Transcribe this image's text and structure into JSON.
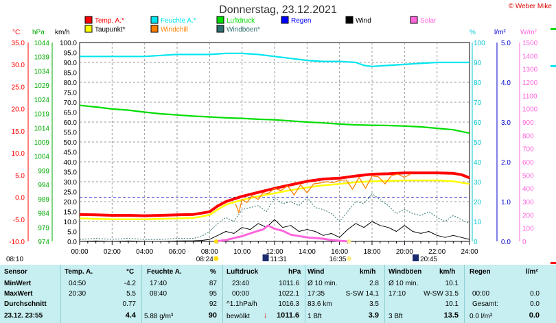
{
  "title": "Donnerstag, 23.12.2021",
  "copyright": "© Weber Mike",
  "colors": {
    "temp": "#ff0000",
    "dewpoint": "#ffff00",
    "humidity": "#00e5ee",
    "windchill": "#ff8000",
    "pressure": "#00dd00",
    "windgust": "#2f6f6f",
    "rain": "#0000ff",
    "wind": "#000000",
    "solar": "#ff66dd",
    "stats_bg": "#c7eef0"
  },
  "legend": [
    {
      "label": "Temp. A.*",
      "color": "#ff0000",
      "row": 0,
      "col": 0
    },
    {
      "label": "Feuchte A.*",
      "color": "#00e5ee",
      "row": 0,
      "col": 1
    },
    {
      "label": "Luftdruck",
      "color": "#00dd00",
      "row": 0,
      "col": 2
    },
    {
      "label": "Regen",
      "color": "#0000ff",
      "row": 0,
      "col": 3
    },
    {
      "label": "Wind",
      "color": "#000000",
      "row": 0,
      "col": 4
    },
    {
      "label": "Solar",
      "color": "#ff66dd",
      "row": 0,
      "col": 5
    },
    {
      "label": "Taupunkt*",
      "color": "#ffff00",
      "row": 1,
      "col": 0
    },
    {
      "label": "Windchill",
      "color": "#ff8000",
      "row": 1,
      "col": 1
    },
    {
      "label": "Windböen*",
      "color": "#2f6f6f",
      "row": 1,
      "col": 2
    }
  ],
  "axis_units": {
    "temp": "°C",
    "pressure": "hPa",
    "wind": "km/h",
    "humidity": "%",
    "rain": "l/m²",
    "solar": "W/m²"
  },
  "chart_data": {
    "type": "line",
    "x_labels": [
      "00:00",
      "02:00",
      "04:00",
      "06:00",
      "08:00",
      "10:00",
      "12:00",
      "14:00",
      "16:00",
      "18:00",
      "20:00",
      "22:00",
      "24:00"
    ],
    "axes": {
      "temp_c": {
        "range": [
          -10,
          35
        ],
        "ticks": [
          "35.0",
          "30.0",
          "25.0",
          "20.0",
          "15.0",
          "10.0",
          "5.0",
          "0.0",
          "-5.0",
          "-10.0"
        ]
      },
      "pressure_hpa": {
        "range": [
          974,
          1044
        ],
        "ticks": [
          "1044",
          "1039",
          "1034",
          "1029",
          "1024",
          "1019",
          "1014",
          "1009",
          "1004",
          "999",
          "994",
          "989",
          "984",
          "979",
          "974"
        ]
      },
      "wind_kmh": {
        "range": [
          0,
          100
        ],
        "ticks": [
          "100.0",
          "95.0",
          "90.0",
          "85.0",
          "80.0",
          "75.0",
          "70.0",
          "65.0",
          "60.0",
          "55.0",
          "50.0",
          "45.0",
          "40.0",
          "35.0",
          "30.0",
          "25.0",
          "20.0",
          "15.0",
          "10.0",
          "5.0",
          "0.0"
        ]
      },
      "humidity_pct": {
        "range": [
          0,
          100
        ],
        "ticks": [
          "100",
          "90",
          "80",
          "70",
          "60",
          "50",
          "40",
          "30",
          "20",
          "10",
          "0"
        ]
      },
      "rain_lm2": {
        "range": [
          0,
          5
        ],
        "ticks": [
          "5.0",
          "4.0",
          "3.0",
          "2.0",
          "1.0",
          "0.0"
        ]
      },
      "solar_wm2": {
        "range": [
          0,
          1500
        ],
        "ticks": [
          "1500",
          "1400",
          "1300",
          "1200",
          "1100",
          "1000",
          "900",
          "800",
          "700",
          "600",
          "500",
          "400",
          "300",
          "200",
          "100",
          "0"
        ]
      }
    },
    "series": [
      {
        "name": "Feuchte A.*",
        "axis": "humidity_pct",
        "color": "#00e5ee",
        "x": [
          0,
          1,
          2,
          3,
          4,
          5,
          6,
          7,
          8,
          9,
          10,
          11,
          12,
          13,
          14,
          15,
          16,
          17,
          17.5,
          18,
          19,
          20,
          21,
          22,
          23,
          24
        ],
        "y": [
          93,
          93,
          93,
          93,
          93,
          93.5,
          94,
          94,
          94,
          94.5,
          94.5,
          94,
          93,
          92,
          91,
          90.5,
          90.5,
          90,
          88.5,
          88,
          88.5,
          89,
          89.5,
          90,
          90,
          90
        ]
      },
      {
        "name": "Luftdruck",
        "axis": "pressure_hpa",
        "color": "#00dd00",
        "x": [
          0,
          1,
          2,
          3,
          4,
          5,
          6,
          7,
          8,
          9,
          10,
          11,
          12,
          13,
          14,
          15,
          16,
          17,
          18,
          19,
          20,
          21,
          22,
          23,
          24
        ],
        "y": [
          1021.9,
          1021.3,
          1020.6,
          1020.2,
          1019.5,
          1018.9,
          1018.5,
          1018.1,
          1017.8,
          1017.5,
          1017.3,
          1017.0,
          1016.8,
          1016.4,
          1016.0,
          1015.7,
          1015.3,
          1015.0,
          1014.9,
          1014.8,
          1014.6,
          1014.3,
          1013.8,
          1013.3,
          1012.1
        ]
      },
      {
        "name": "Temp. A.*",
        "axis": "temp_c",
        "color": "#ff0000",
        "x": [
          0,
          1,
          2,
          3,
          4,
          5,
          6,
          7,
          7.5,
          8,
          8.5,
          9,
          10,
          11,
          12,
          13,
          14,
          15,
          16,
          17,
          18,
          19,
          20,
          21,
          22,
          23,
          23.5,
          24
        ],
        "y": [
          -3.9,
          -4.0,
          -4.1,
          -4.1,
          -4.2,
          -4.1,
          -4.0,
          -3.9,
          -3.6,
          -3.3,
          -2.0,
          -1.0,
          0.2,
          1.1,
          2.0,
          2.8,
          3.6,
          4.1,
          4.3,
          4.8,
          5.2,
          5.3,
          5.5,
          5.5,
          5.5,
          5.4,
          5.1,
          4.4
        ]
      },
      {
        "name": "Taupunkt*",
        "axis": "temp_c",
        "color": "#ffff00",
        "x": [
          0,
          1,
          2,
          3,
          4,
          5,
          6,
          7,
          7.5,
          8,
          8.5,
          9,
          10,
          11,
          12,
          13,
          14,
          15,
          16,
          17,
          18,
          19,
          20,
          21,
          22,
          23,
          24
        ],
        "y": [
          -4.8,
          -4.9,
          -5.0,
          -5.0,
          -5.0,
          -4.9,
          -4.8,
          -4.7,
          -4.4,
          -4.0,
          -2.8,
          -1.7,
          -0.6,
          0.2,
          0.9,
          1.6,
          2.2,
          2.7,
          3.0,
          3.4,
          3.6,
          3.7,
          3.8,
          3.8,
          3.8,
          3.6,
          3.0
        ]
      },
      {
        "name": "Windchill",
        "axis": "temp_c",
        "color": "#ff8000",
        "x": [
          9.6,
          9.8,
          10,
          10.3,
          10.6,
          11,
          11.3,
          11.6,
          12,
          12.4,
          12.8,
          13.2,
          13.6,
          14,
          14.4,
          14.8,
          15.2,
          15.6,
          16,
          16.4,
          16.8,
          17.2,
          17.6,
          18,
          18.4,
          18.8,
          19.2,
          19.6,
          20,
          20.4
        ],
        "y": [
          -1.5,
          -3.5,
          -0.5,
          -1.2,
          0.3,
          -0.5,
          1.0,
          0.8,
          2.0,
          1.5,
          2.6,
          0.5,
          2.8,
          1.0,
          3.0,
          3.2,
          3.5,
          3.3,
          3.8,
          3.9,
          1.8,
          4.5,
          2.0,
          4.8,
          4.6,
          3.0,
          4.9,
          5.2,
          4.5,
          5.3
        ]
      },
      {
        "name": "Windböen*",
        "axis": "wind_kmh",
        "color": "#2f6f6f",
        "x": [
          0,
          1,
          2,
          3,
          4,
          5,
          6,
          7,
          7.5,
          8,
          8.5,
          9,
          9.5,
          10,
          10.5,
          11,
          11.5,
          12,
          12.5,
          13,
          13.5,
          14,
          14.5,
          15,
          15.5,
          16,
          16.5,
          17,
          17.5,
          18,
          18.5,
          19,
          19.5,
          20,
          20.5,
          21,
          21.5,
          22,
          22.5,
          23,
          23.5,
          24
        ],
        "y": [
          1,
          1.5,
          1,
          1.5,
          1,
          1,
          1.5,
          1.5,
          2.5,
          5,
          9,
          12,
          10,
          16,
          17,
          18,
          15,
          22,
          19,
          20,
          18,
          22,
          17,
          16,
          14,
          10,
          15,
          20,
          19,
          24,
          21,
          18,
          14,
          16,
          14,
          13,
          15,
          12,
          10,
          13,
          11,
          9
        ]
      },
      {
        "name": "Wind",
        "axis": "wind_kmh",
        "color": "#000000",
        "x": [
          0,
          1,
          2,
          3,
          4,
          5,
          6,
          7,
          7.5,
          8,
          8.5,
          9,
          9.5,
          10,
          10.5,
          11,
          11.5,
          12,
          12.5,
          13,
          13.5,
          14,
          14.5,
          15,
          15.5,
          16,
          16.5,
          17,
          17.5,
          18,
          18.5,
          19,
          19.5,
          20,
          20.5,
          21,
          21.5,
          22,
          22.5,
          23,
          23.5,
          24
        ],
        "y": [
          0,
          0.2,
          0,
          0.2,
          0,
          0,
          0.2,
          0.3,
          0.5,
          1,
          3,
          5,
          4,
          7,
          6,
          9,
          7,
          11,
          7,
          8,
          5,
          6,
          5,
          3,
          4,
          2,
          6,
          9,
          7,
          10,
          8,
          7,
          5,
          8,
          5,
          4,
          5,
          3,
          2,
          3,
          2,
          1
        ]
      },
      {
        "name": "Solar",
        "axis": "solar_wm2",
        "color": "#ff66dd",
        "x": [
          8.3,
          9,
          9.5,
          10,
          10.5,
          11,
          11.3,
          11.6,
          12,
          12.5,
          13,
          14,
          15,
          15.5,
          16,
          16.5
        ],
        "y": [
          0,
          10,
          25,
          40,
          60,
          80,
          90,
          120,
          95,
          80,
          50,
          30,
          20,
          10,
          5,
          0
        ]
      }
    ],
    "markers": {
      "sunrise": "08:24",
      "sunset": "16:35",
      "moonrise": "20:45",
      "moonset": "11:31",
      "left_time": "08:10",
      "frost_line_c": 0.0
    }
  },
  "stats": {
    "headers": {
      "sensor": "Sensor",
      "temp": "Temp. A.",
      "temp_unit": "°C",
      "hum": "Feuchte A.",
      "hum_unit": "%",
      "press": "Luftdruck",
      "press_unit": "hPa",
      "wind": "Wind",
      "wind_unit": "km/h",
      "gust": "Windböen",
      "gust_unit": "km/h",
      "rain": "Regen",
      "rain_unit": "l/m²"
    },
    "rows": [
      {
        "label": "MinWert",
        "temp_time": "04:50",
        "temp_val": "-4.2",
        "hum_time": "17:40",
        "hum_val": "87",
        "press_time": "23:40",
        "press_val": "1011.6",
        "wind_a": "Ø 10 min.",
        "wind_val": "2.8",
        "gust_a": "Ø 10 min.",
        "gust_val": "10.1",
        "rain_a": "",
        "rain_val": ""
      },
      {
        "label": "MaxWert",
        "temp_time": "20:30",
        "temp_val": "5.5",
        "hum_time": "08:40",
        "hum_val": "95",
        "press_time": "00:00",
        "press_val": "1022.1",
        "wind_a": "17:35",
        "wind_b": "S-SW 14.1",
        "wind_val": "",
        "gust_a": "17:10",
        "gust_b": "W-SW 31.5",
        "gust_val": "",
        "rain_a": "00:00",
        "rain_val": "0.0"
      },
      {
        "label": "Durchschnitt",
        "temp_time": "",
        "temp_val": "0.77",
        "hum_time": "",
        "hum_val": "92",
        "press_time": "^1.1hPa/h",
        "press_val": "1016.3",
        "wind_a": "83.6 km",
        "wind_val": "3.5",
        "gust_a": "",
        "gust_val": "10.1",
        "rain_a": "Gesamt:",
        "rain_val": "0.0"
      },
      {
        "label": "23.12. 23:55",
        "temp_time": "",
        "temp_val": "4.4",
        "hum_time": "5.88 g/m³",
        "hum_val": "90",
        "press_time": "bewölkt",
        "press_arrow": "↓",
        "press_val": "1011.6",
        "wind_a": "1 Bft",
        "wind_val": "3.9",
        "gust_a": "3 Bft",
        "gust_val": "13.5",
        "rain_a": "0.0 l/m²",
        "rain_val": "0.0"
      }
    ]
  }
}
